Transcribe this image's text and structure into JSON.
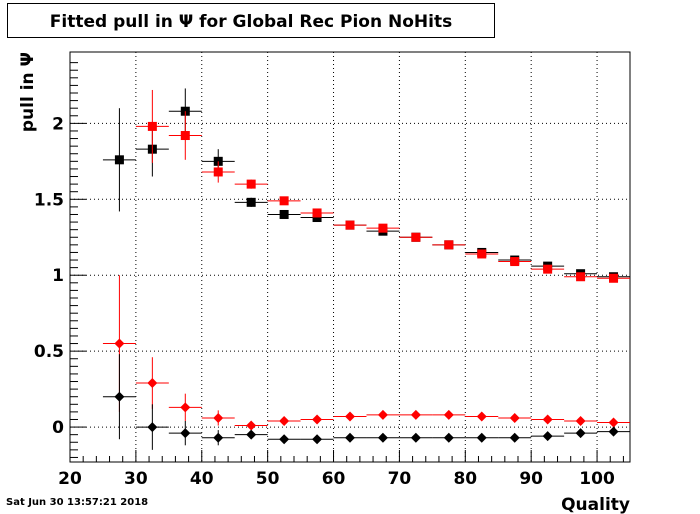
{
  "chart_data": {
    "type": "scatter",
    "title": "Fitted pull in Ψ  for Global Rec Pion NoHits",
    "xlabel": "Quality",
    "ylabel": "pull in Ψ",
    "xlim": [
      20,
      105
    ],
    "ylim": [
      -0.23,
      2.47
    ],
    "x_ticks": [
      "20",
      "30",
      "40",
      "50",
      "60",
      "70",
      "80",
      "90",
      "100"
    ],
    "x_tick_values": [
      20,
      30,
      40,
      50,
      60,
      70,
      80,
      90,
      100
    ],
    "y_ticks": [
      "0",
      "0.5",
      "1",
      "1.5",
      "2"
    ],
    "y_tick_values": [
      0,
      0.5,
      1,
      1.5,
      2
    ],
    "grid": true,
    "bin_half_width": 2.5,
    "series": [
      {
        "marker": "square",
        "color": "#000000",
        "x": [
          27.5,
          32.5,
          37.5,
          42.5,
          47.5,
          52.5,
          57.5,
          62.5,
          67.5,
          72.5,
          77.5,
          82.5,
          87.5,
          92.5,
          97.5,
          102.5
        ],
        "y": [
          1.76,
          1.83,
          2.08,
          1.75,
          1.48,
          1.4,
          1.38,
          1.33,
          1.29,
          1.25,
          1.2,
          1.15,
          1.1,
          1.06,
          1.01,
          0.99
        ],
        "yerr": [
          0.34,
          0.18,
          0.15,
          0.08,
          0.03,
          0.02,
          0.02,
          0.02,
          0.02,
          0.02,
          0.02,
          0.02,
          0.02,
          0.02,
          0.02,
          0.02
        ]
      },
      {
        "marker": "square",
        "color": "#ff0000",
        "x": [
          32.5,
          37.5,
          42.5,
          47.5,
          52.5,
          57.5,
          62.5,
          67.5,
          72.5,
          77.5,
          82.5,
          87.5,
          92.5,
          97.5,
          102.5
        ],
        "y": [
          1.98,
          1.92,
          1.68,
          1.6,
          1.49,
          1.41,
          1.33,
          1.31,
          1.25,
          1.2,
          1.14,
          1.09,
          1.04,
          0.99,
          0.98
        ],
        "yerr": [
          0.24,
          0.16,
          0.07,
          0.03,
          0.02,
          0.02,
          0.02,
          0.02,
          0.02,
          0.02,
          0.02,
          0.02,
          0.02,
          0.02,
          0.02
        ]
      },
      {
        "marker": "diamond",
        "color": "#ff0000",
        "x": [
          27.5,
          32.5,
          37.5,
          42.5,
          47.5,
          52.5,
          57.5,
          62.5,
          67.5,
          72.5,
          77.5,
          82.5,
          87.5,
          92.5,
          97.5,
          102.5
        ],
        "y": [
          0.55,
          0.29,
          0.13,
          0.06,
          0.01,
          0.04,
          0.05,
          0.07,
          0.08,
          0.08,
          0.08,
          0.07,
          0.06,
          0.05,
          0.04,
          0.03
        ],
        "yerr": [
          0.45,
          0.17,
          0.09,
          0.05,
          0.02,
          0.02,
          0.02,
          0.02,
          0.02,
          0.02,
          0.02,
          0.02,
          0.02,
          0.02,
          0.02,
          0.02
        ]
      },
      {
        "marker": "diamond",
        "color": "#000000",
        "x": [
          27.5,
          32.5,
          37.5,
          42.5,
          47.5,
          52.5,
          57.5,
          62.5,
          67.5,
          72.5,
          77.5,
          82.5,
          87.5,
          92.5,
          97.5,
          102.5
        ],
        "y": [
          0.2,
          0.0,
          -0.04,
          -0.07,
          -0.05,
          -0.08,
          -0.08,
          -0.07,
          -0.07,
          -0.07,
          -0.07,
          -0.07,
          -0.07,
          -0.06,
          -0.04,
          -0.03
        ],
        "yerr": [
          0.28,
          0.15,
          0.08,
          0.05,
          0.02,
          0.02,
          0.02,
          0.02,
          0.02,
          0.02,
          0.02,
          0.02,
          0.02,
          0.02,
          0.02,
          0.02
        ]
      }
    ]
  },
  "timestamp": "Sat Jun 30 13:57:21 2018"
}
